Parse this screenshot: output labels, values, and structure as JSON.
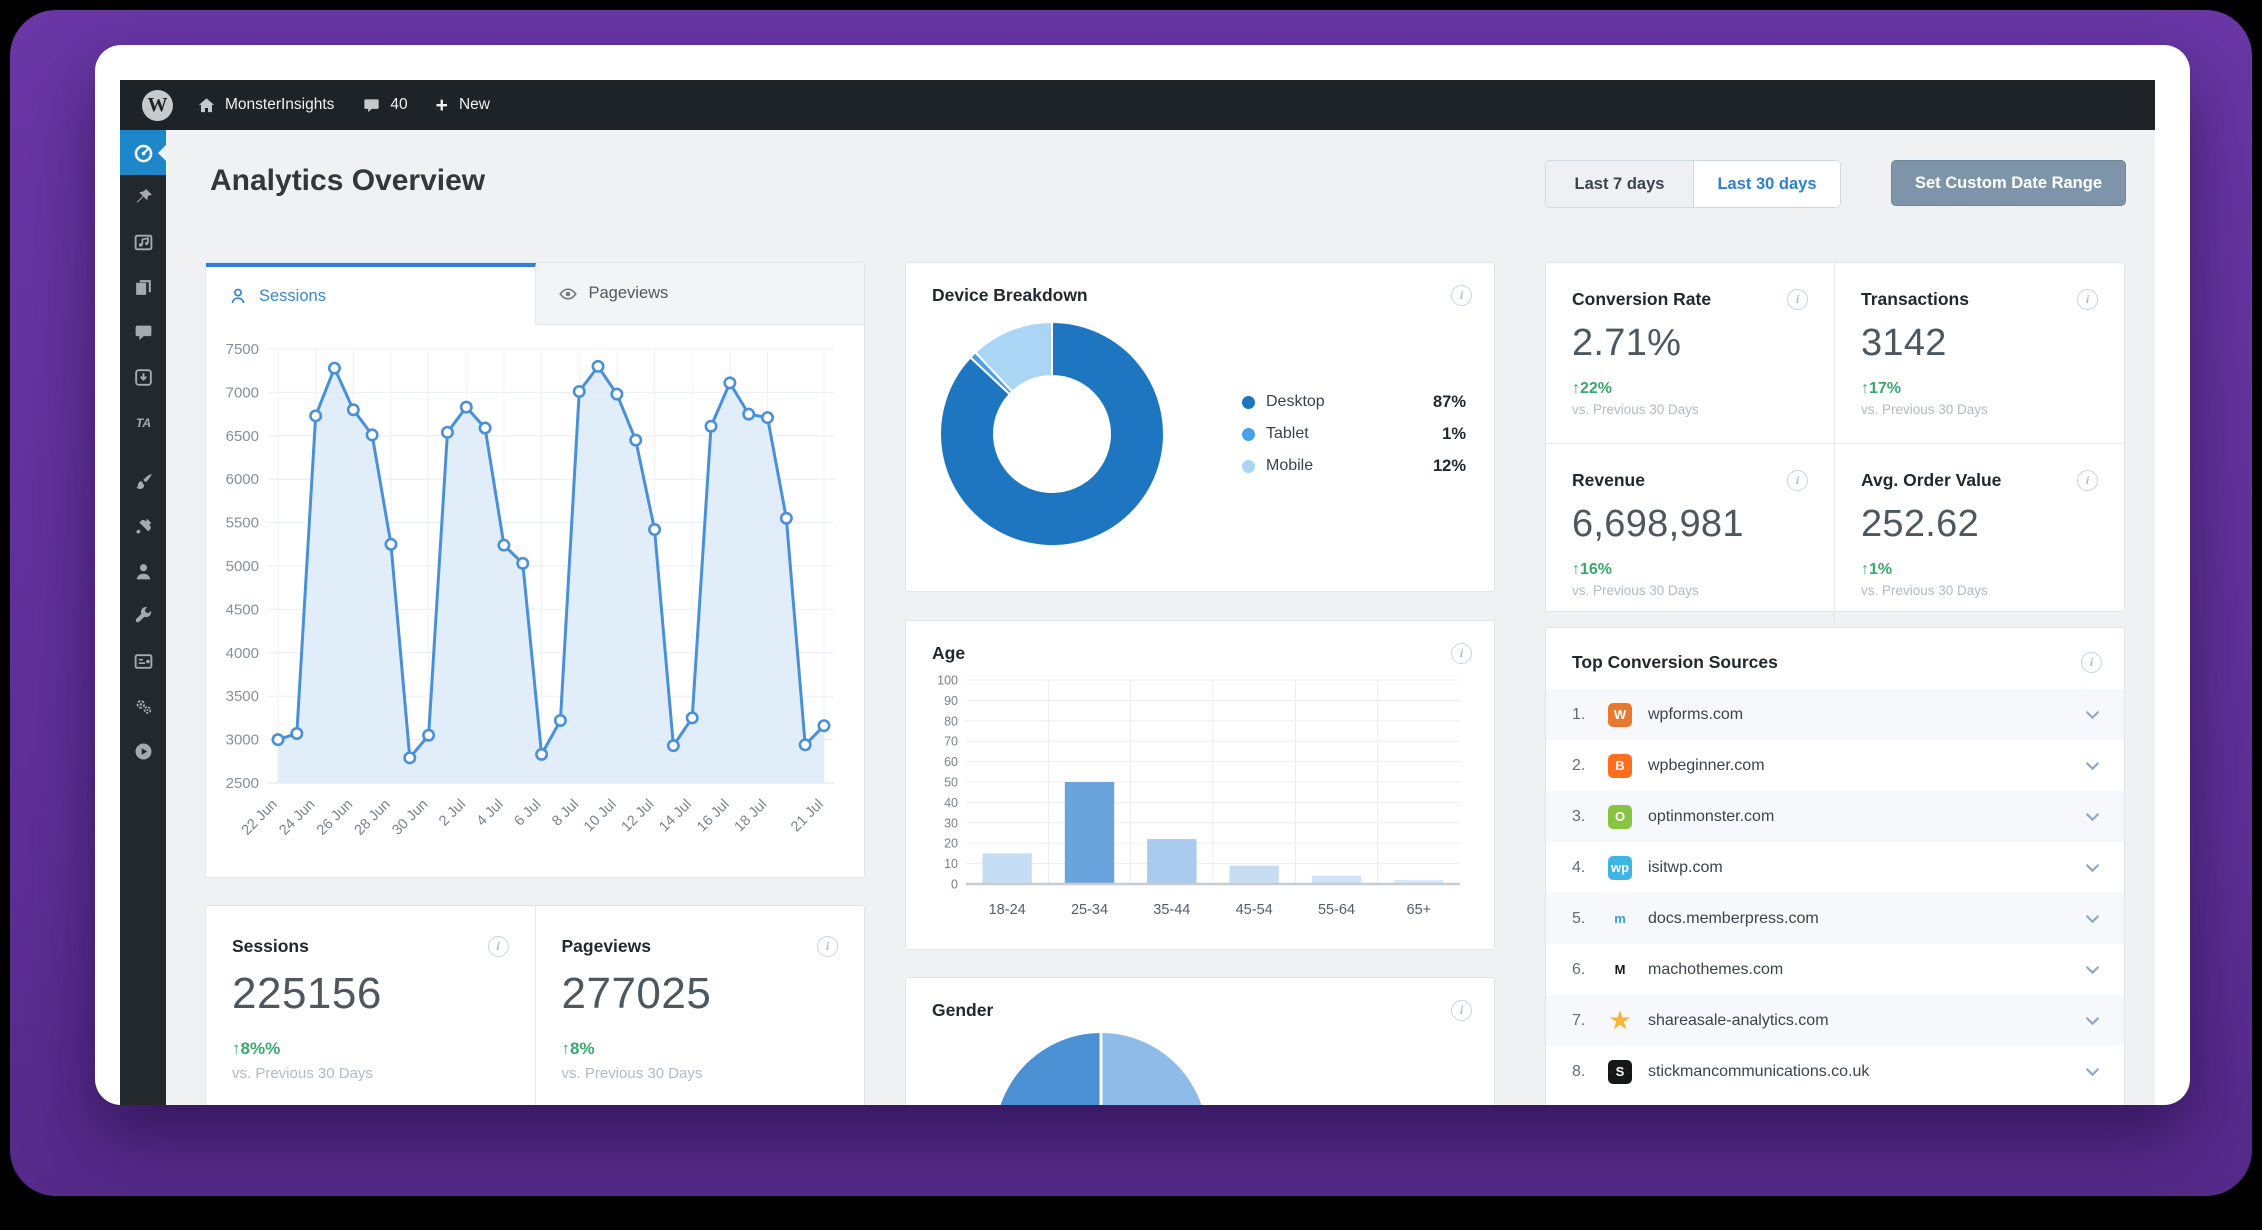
{
  "admin_bar": {
    "site_name": "MonsterInsights",
    "comments_count": "40",
    "new_label": "New"
  },
  "header": {
    "title": "Analytics Overview",
    "range_7": "Last 7 days",
    "range_30": "Last 30 days",
    "custom_range": "Set Custom Date Range"
  },
  "tabs": {
    "sessions": "Sessions",
    "pageviews": "Pageviews"
  },
  "sidebar": {
    "icons": [
      "gauge",
      "pin",
      "media",
      "pages",
      "comments",
      "download",
      "ta",
      "brush",
      "plug",
      "user",
      "wrench",
      "panel",
      "gears",
      "play"
    ],
    "active_index": 0
  },
  "panels": {
    "device": "Device Breakdown",
    "age": "Age",
    "gender": "Gender"
  },
  "kpis": [
    {
      "title": "Conversion Rate",
      "value": "2.71%",
      "change": "↑22%",
      "compare": "vs. Previous 30 Days"
    },
    {
      "title": "Transactions",
      "value": "3142",
      "change": "↑17%",
      "compare": "vs. Previous 30 Days"
    },
    {
      "title": "Revenue",
      "value": "6,698,981",
      "change": "↑16%",
      "compare": "vs. Previous 30 Days"
    },
    {
      "title": "Avg. Order Value",
      "value": "252.62",
      "change": "↑1%",
      "compare": "vs. Previous 30 Days"
    }
  ],
  "stats": [
    {
      "title": "Sessions",
      "value": "225156",
      "change": "↑8%%",
      "compare": "vs. Previous 30 Days"
    },
    {
      "title": "Pageviews",
      "value": "277025",
      "change": "↑8%",
      "compare": "vs. Previous 30 Days"
    }
  ],
  "sources": {
    "title": "Top Conversion Sources",
    "items": [
      {
        "rank": "1.",
        "domain": "wpforms.com",
        "icon": {
          "name": "wpforms-favicon",
          "glyph": "W",
          "bg": "#e8792f",
          "fg": "#ffffff"
        }
      },
      {
        "rank": "2.",
        "domain": "wpbeginner.com",
        "icon": {
          "name": "wpbeginner-favicon",
          "glyph": "B",
          "bg": "#ff6e1f",
          "fg": "#ffffff"
        }
      },
      {
        "rank": "3.",
        "domain": "optinmonster.com",
        "icon": {
          "name": "optinmonster-favicon",
          "glyph": "O",
          "bg": "#87c440",
          "fg": "#ffffff"
        }
      },
      {
        "rank": "4.",
        "domain": "isitwp.com",
        "icon": {
          "name": "isitwp-favicon",
          "glyph": "wp",
          "bg": "#3fb5e6",
          "fg": "#ffffff"
        }
      },
      {
        "rank": "5.",
        "domain": "docs.memberpress.com",
        "icon": {
          "name": "memberpress-favicon",
          "glyph": "m",
          "bg": "transparent",
          "fg": "#38a0d9"
        }
      },
      {
        "rank": "6.",
        "domain": "machothemes.com",
        "icon": {
          "name": "machothemes-favicon",
          "glyph": "M",
          "bg": "transparent",
          "fg": "#16181c"
        }
      },
      {
        "rank": "7.",
        "domain": "shareasale-analytics.com",
        "icon": {
          "name": "shareasale-favicon",
          "glyph": "★",
          "bg": "transparent",
          "fg": "#f6b53a"
        }
      },
      {
        "rank": "8.",
        "domain": "stickmancommunications.co.uk",
        "icon": {
          "name": "stickman-favicon",
          "glyph": "S",
          "bg": "#17181a",
          "fg": "#ffffff"
        }
      }
    ]
  },
  "chart_data": [
    {
      "type": "area",
      "title": "Sessions",
      "x_dates": [
        "22 Jun",
        "23 Jun",
        "24 Jun",
        "25 Jun",
        "26 Jun",
        "27 Jun",
        "28 Jun",
        "29 Jun",
        "30 Jun",
        "1 Jul",
        "2 Jul",
        "3 Jul",
        "4 Jul",
        "5 Jul",
        "6 Jul",
        "7 Jul",
        "8 Jul",
        "9 Jul",
        "10 Jul",
        "11 Jul",
        "12 Jul",
        "13 Jul",
        "14 Jul",
        "15 Jul",
        "16 Jul",
        "17 Jul",
        "18 Jul",
        "19 Jul",
        "20 Jul",
        "21 Jul"
      ],
      "values": [
        3000,
        3070,
        6730,
        7280,
        6800,
        6510,
        5250,
        2790,
        3050,
        6540,
        6830,
        6590,
        5240,
        5030,
        2830,
        3220,
        7010,
        7300,
        6980,
        6450,
        5420,
        2930,
        3250,
        6610,
        7110,
        6750,
        6710,
        5550,
        2940,
        3160
      ],
      "ylim": [
        2500,
        7500
      ],
      "ytick_step": 500,
      "xticks": {
        "indices": [
          0,
          2,
          4,
          6,
          8,
          10,
          12,
          14,
          16,
          18,
          20,
          22,
          24,
          26,
          29
        ],
        "labels": [
          "22 Jun",
          "24 Jun",
          "26 Jun",
          "28 Jun",
          "30 Jun",
          "2 Jul",
          "4 Jul",
          "6 Jul",
          "8 Jul",
          "10 Jul",
          "12 Jul",
          "14 Jul",
          "16 Jul",
          "18 Jul",
          "21 Jul"
        ]
      },
      "grid": true,
      "line_color": "#4a90d9",
      "fill_color": "#dcebf9",
      "legend_position": "none"
    },
    {
      "type": "pie",
      "title": "Device Breakdown",
      "donut": true,
      "labels": [
        "Desktop",
        "Tablet",
        "Mobile"
      ],
      "values": [
        87,
        1,
        12
      ],
      "display": [
        "87%",
        "1%",
        "12%"
      ],
      "colors": [
        "#1d76bf",
        "#4aa0e8",
        "#abd5f5"
      ],
      "legend_position": "right"
    },
    {
      "type": "bar",
      "title": "Age",
      "categories": [
        "18-24",
        "25-34",
        "35-44",
        "45-54",
        "55-64",
        "65+"
      ],
      "values": [
        15,
        50,
        22,
        9,
        4,
        2
      ],
      "ylim": [
        0,
        100
      ],
      "ytick_step": 10,
      "colors": [
        "#c5def5",
        "#6ba4dc",
        "#a8cbee",
        "#c6ddf4",
        "#d0e3f7",
        "#dbeaf9"
      ],
      "grid": true
    },
    {
      "type": "pie",
      "title": "Gender",
      "values": [
        50,
        50
      ],
      "colors": [
        "#4c90d4",
        "#8fbbe9"
      ]
    }
  ]
}
